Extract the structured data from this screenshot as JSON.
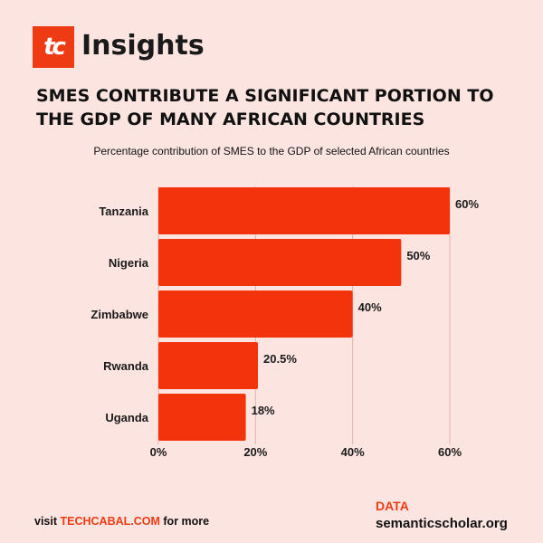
{
  "brand": {
    "logo_text": "tc",
    "name": "Insights"
  },
  "headline": "SMES CONTRIBUTE A SIGNIFICANT PORTION TO THE GDP OF MANY AFRICAN COUNTRIES",
  "colors": {
    "accent": "#ef3b14",
    "bar": "#f3330c",
    "background": "#fce4e0",
    "grid": "#e2b3ab"
  },
  "chart_data": {
    "type": "bar",
    "orientation": "horizontal",
    "title": "Percentage contribution of SMES to the GDP of selected African countries",
    "categories": [
      "Tanzania",
      "Nigeria",
      "Zimbabwe",
      "Rwanda",
      "Uganda"
    ],
    "values": [
      60,
      50,
      40,
      20.5,
      18
    ],
    "value_labels": [
      "60%",
      "50%",
      "40%",
      "20.5%",
      "18%"
    ],
    "xlabel": "",
    "ylabel": "",
    "xlim": [
      0,
      60
    ],
    "xticks": [
      0,
      20,
      40,
      60
    ],
    "xtick_labels": [
      "0%",
      "20%",
      "40%",
      "60%"
    ],
    "grid": true,
    "legend": "none"
  },
  "footer": {
    "visit_prefix": "visit ",
    "visit_link": "TECHCABAL.COM",
    "visit_suffix": " for more",
    "data_label": "DATA",
    "data_source": "semanticscholar.org"
  }
}
